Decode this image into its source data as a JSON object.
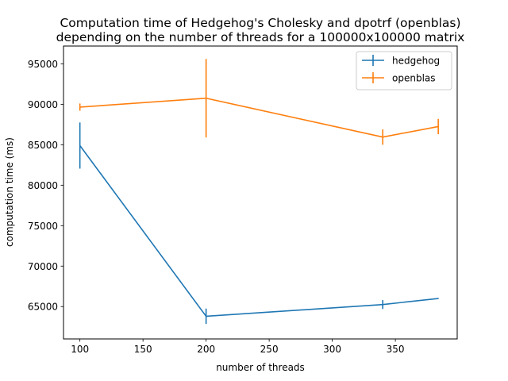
{
  "chart_data": {
    "type": "line",
    "title": "Computation time of Hedgehog's Cholesky and dpotrf (openblas)",
    "subtitle": "depending on the number of threads for a 100000x100000 matrix",
    "xlabel": "number of threads",
    "ylabel": "computation time (ms)",
    "xlim": [
      87,
      399
    ],
    "ylim": [
      61000,
      97200
    ],
    "xticks": [
      100,
      150,
      200,
      250,
      300,
      350
    ],
    "yticks": [
      65000,
      70000,
      75000,
      80000,
      85000,
      90000,
      95000
    ],
    "grid": false,
    "legend_position": "top-right",
    "series": [
      {
        "name": "hedgehog",
        "color": "#1f77b4",
        "points": [
          {
            "x": 100,
            "y": 84900,
            "err": 2850
          },
          {
            "x": 200,
            "y": 63800,
            "err": 950
          },
          {
            "x": 340,
            "y": 65250,
            "err": 550
          },
          {
            "x": 384,
            "y": 66000,
            "err": 50
          }
        ]
      },
      {
        "name": "openblas",
        "color": "#ff7f0e",
        "points": [
          {
            "x": 100,
            "y": 89650,
            "err": 450
          },
          {
            "x": 200,
            "y": 90750,
            "err": 4850
          },
          {
            "x": 340,
            "y": 85950,
            "err": 950
          },
          {
            "x": 384,
            "y": 87250,
            "err": 950
          }
        ]
      }
    ]
  }
}
